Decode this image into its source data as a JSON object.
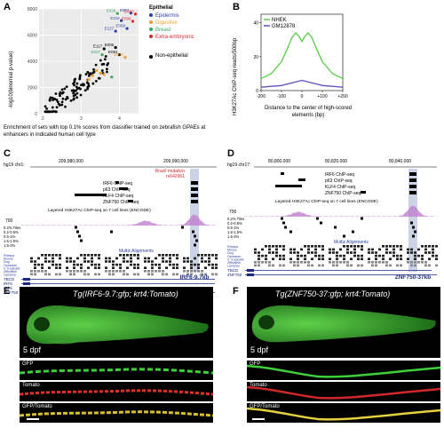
{
  "panelA": {
    "letter": "A",
    "legend_title": "Epithelial",
    "legend_items": [
      {
        "label": "Epidermis",
        "color": "#2c3ea5"
      },
      {
        "label": "Digestive",
        "color": "#f0a030"
      },
      {
        "label": "Breast",
        "color": "#3aa860"
      },
      {
        "label": "Extra-embryonic",
        "color": "#d6262b"
      }
    ],
    "non_epithelial_label": "Non-epithelial",
    "ylabel": "-log10(binomial p-value)",
    "caption": "Enrichment of sets with top 0.1% scores from classifier trained on zebrafish GPAEs at enhancers in indicated human cell type",
    "point_labels": [
      {
        "text": "E028",
        "color": "#3aa860"
      },
      {
        "text": "E057",
        "color": "#2c3ea5"
      },
      {
        "text": "E080",
        "color": "#d6262b"
      },
      {
        "text": "E119",
        "color": "#2c3ea5"
      },
      {
        "text": "E099",
        "color": "#d6262b"
      },
      {
        "text": "E058",
        "color": "#2c3ea5"
      },
      {
        "text": "E127",
        "color": "#2c3ea5"
      },
      {
        "text": "E117",
        "color": "#000000"
      },
      {
        "text": "E006",
        "color": "#000000"
      },
      {
        "text": "E027",
        "color": "#3aa860"
      },
      {
        "text": "E091",
        "color": "#000000"
      },
      {
        "text": "E079",
        "color": "#f0a030"
      }
    ]
  },
  "chart_data": [
    {
      "type": "scatter",
      "ylabel": "-log10(binomial p-value)",
      "ylim": [
        0,
        8000
      ],
      "y_ticks": [
        "0",
        "2000",
        "4000",
        "6000",
        "8000"
      ],
      "x_ticks": [
        "2",
        "3",
        "4"
      ],
      "xlim": [
        1.9,
        4.5
      ]
    },
    {
      "type": "line",
      "ylabel": "H3K27Ac ChIP-seq reads/500bp",
      "xlabel": "Distance to the center of high-scored elements (bp)",
      "x_ticks": [
        "-200",
        "-100",
        "0",
        "+100",
        "+200"
      ],
      "y_ticks": [
        "0",
        "20",
        "40"
      ],
      "ylim": [
        0,
        45
      ],
      "series": [
        {
          "name": "NHEK",
          "color": "#55cc44",
          "x": [
            -200,
            -150,
            -100,
            -70,
            -50,
            -30,
            -15,
            0,
            15,
            30,
            50,
            70,
            100,
            150,
            200
          ],
          "values": [
            7,
            10,
            17,
            25,
            31,
            34,
            32,
            29,
            32,
            34,
            31,
            25,
            17,
            10,
            7
          ]
        },
        {
          "name": "GM12878",
          "color": "#6050c0",
          "x": [
            -200,
            -150,
            -100,
            -50,
            0,
            50,
            100,
            150,
            200
          ],
          "values": [
            2,
            2.5,
            3,
            4.5,
            6,
            4.5,
            3,
            2.5,
            2
          ]
        }
      ]
    }
  ],
  "panelB": {
    "letter": "B",
    "legend": [
      "NHEK",
      "GM12878"
    ],
    "x_ticks": [
      "-200",
      "-100",
      "0",
      "+100",
      "+200"
    ],
    "y_ticks": [
      "0",
      "20",
      "40"
    ]
  },
  "panelC": {
    "letter": "C",
    "chrom": "hg19 chr1:",
    "coord1": "209,980,000",
    "coord2": "209,990,000",
    "mutation": "Brazil mutation",
    "snp": "rs642961",
    "tracks": [
      "IRF6 ChIP-seq",
      "p63 ChIP-seq",
      "KLF4 ChIP-seq",
      "ZNF750 ChIP-seq"
    ],
    "layered": "Layered H3K27Ac ChIP-seq on 7 cell lines (ENCODE)",
    "y_top": "700",
    "tiles": [
      "0.2% Tiles",
      "0.2-0.5%",
      "0.5-1%",
      "1.5-1.5%",
      "1.5-2%"
    ],
    "multiz": "Multiz Alignments",
    "species": [
      "Rhesus",
      "Mouse",
      "Dog",
      "Opossum",
      "X_tropicalis",
      "Zebrafish",
      "Lamprey"
    ],
    "genes": [
      "TBCD",
      "IRF6",
      "IRF6",
      "ZNF750"
    ],
    "region": "IRF6-9.7kb"
  },
  "panelD": {
    "letter": "D",
    "chrom": "hg19 chr17:",
    "coord1": "80,800,000",
    "coord2": "80,820,000",
    "coord3": "80,840,000",
    "tracks": [
      "IRF6 ChIP-seq",
      "p63 ChIP-seq",
      "KLF4 ChIP-seq",
      "ZNF750 ChIP-seq"
    ],
    "layered": "Layered H3K27Ac ChIP-seq on 7 cell lines (ENCODE)",
    "y_top": "700",
    "tiles": [
      "0.2% Tiles",
      "0.2-0.5%",
      "0.5-1%",
      "1.5-1.5%",
      "1.5-2%"
    ],
    "multiz": "Multiz Alignments",
    "species": [
      "Rhesus",
      "Mouse",
      "Dog",
      "Opossum",
      "X_tropicalis",
      "Zebrafish",
      "Lamprey"
    ],
    "genes": [
      "TBCD",
      "ZNF750"
    ],
    "region": "ZNF750-37kb"
  },
  "panelE": {
    "letter": "E",
    "title": "Tg(IRF6-9.7:gfp; krt4:Tomato)",
    "stage": "5 dpf",
    "strips": [
      "GFP",
      "Tomato",
      "GFP/Tomato"
    ]
  },
  "panelF": {
    "letter": "F",
    "title": "Tg(ZNF750-37:gfp; krt4:Tomato)",
    "stage": "5 dpf",
    "strips": [
      "GFP",
      "Tomato",
      "GFP/Tomato"
    ]
  }
}
